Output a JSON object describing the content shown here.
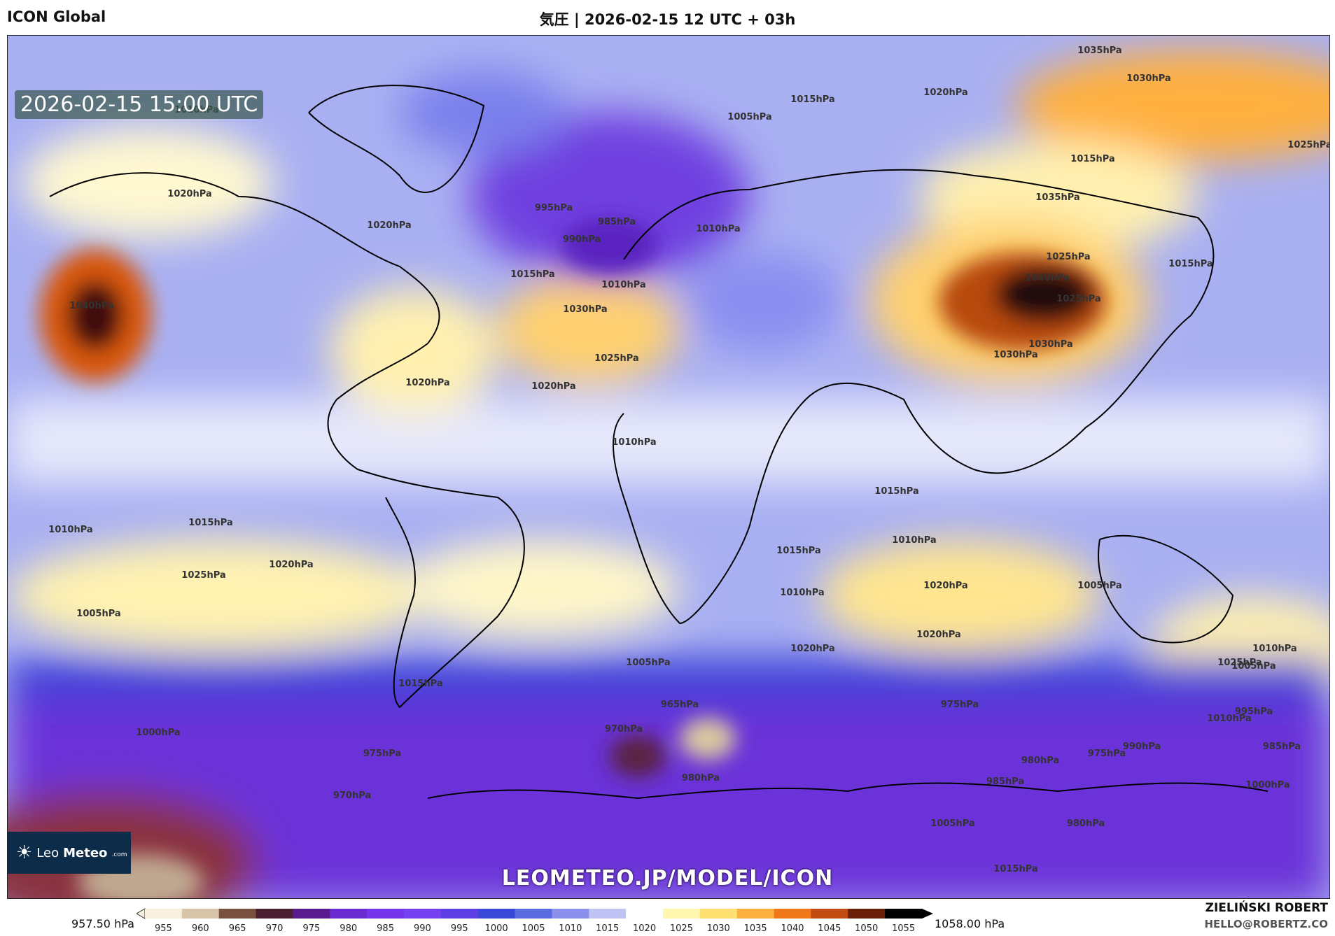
{
  "header": {
    "model": "ICON Global",
    "title": "気圧 | 2026-02-15 12 UTC + 03h"
  },
  "map": {
    "valid_time": "2026-02-15 15:00 UTC",
    "watermark": "LEOMETEO.JP/MODEL/ICON",
    "logo": {
      "leo": "Leo",
      "meteo": "Meteo",
      "com": ".com"
    },
    "isobar_labels": [
      "1035hPa",
      "1030hPa",
      "1020hPa",
      "1015hPa",
      "1005hPa",
      "1010hPa",
      "1025hPa",
      "1015hPa",
      "995hPa",
      "985hPa",
      "990hPa",
      "1010hPa",
      "1015hPa",
      "1020hPa",
      "1035hPa",
      "1040hPa",
      "1030hPa",
      "1025hPa",
      "1030hPa",
      "1015hPa",
      "1020hPa",
      "1010hPa",
      "1025hPa",
      "1020hPa",
      "1020hPa",
      "1010hPa",
      "1015hPa",
      "1010hPa",
      "1015hPa",
      "1020hPa",
      "1025hPa",
      "1005hPa",
      "1010hPa",
      "1020hPa",
      "1025hPa",
      "1020hPa",
      "1005hPa",
      "1010hPa",
      "965hPa",
      "970hPa",
      "975hPa",
      "980hPa",
      "985hPa",
      "990hPa",
      "995hPa",
      "1000hPa",
      "1005hPa",
      "975hPa",
      "970hPa",
      "980hPa",
      "985hPa",
      "975hPa",
      "980hPa",
      "1040hPa",
      "1025hPa",
      "1030hPa",
      "1020hPa",
      "1015hPa",
      "1000hPa",
      "1005hPa",
      "1010hPa",
      "1015hPa",
      "1010hPa",
      "1005hPa",
      "1015hPa"
    ]
  },
  "legend": {
    "min_label": "957.50 hPa",
    "max_label": "1058.00 hPa",
    "ticks": [
      "955",
      "960",
      "965",
      "970",
      "975",
      "980",
      "985",
      "990",
      "995",
      "1000",
      "1005",
      "1010",
      "1015",
      "1020",
      "1025",
      "1030",
      "1035",
      "1040",
      "1045",
      "1050",
      "1055"
    ],
    "colors": [
      "#f7f0e0",
      "#d8c4a8",
      "#7a5040",
      "#4a2030",
      "#5a1a90",
      "#6a2cd0",
      "#7535e8",
      "#7540f0",
      "#5c40e6",
      "#3a48d8",
      "#5a6ae0",
      "#8a90ec",
      "#c0c4f4",
      "#ffffff",
      "#fff6b0",
      "#fde070",
      "#fcb040",
      "#f07818",
      "#c04a10",
      "#6a2008",
      "#000000"
    ]
  },
  "credits": {
    "author": "ZIELIŃSKI ROBERT",
    "email": "HELLO@ROBERTZ.CO"
  }
}
